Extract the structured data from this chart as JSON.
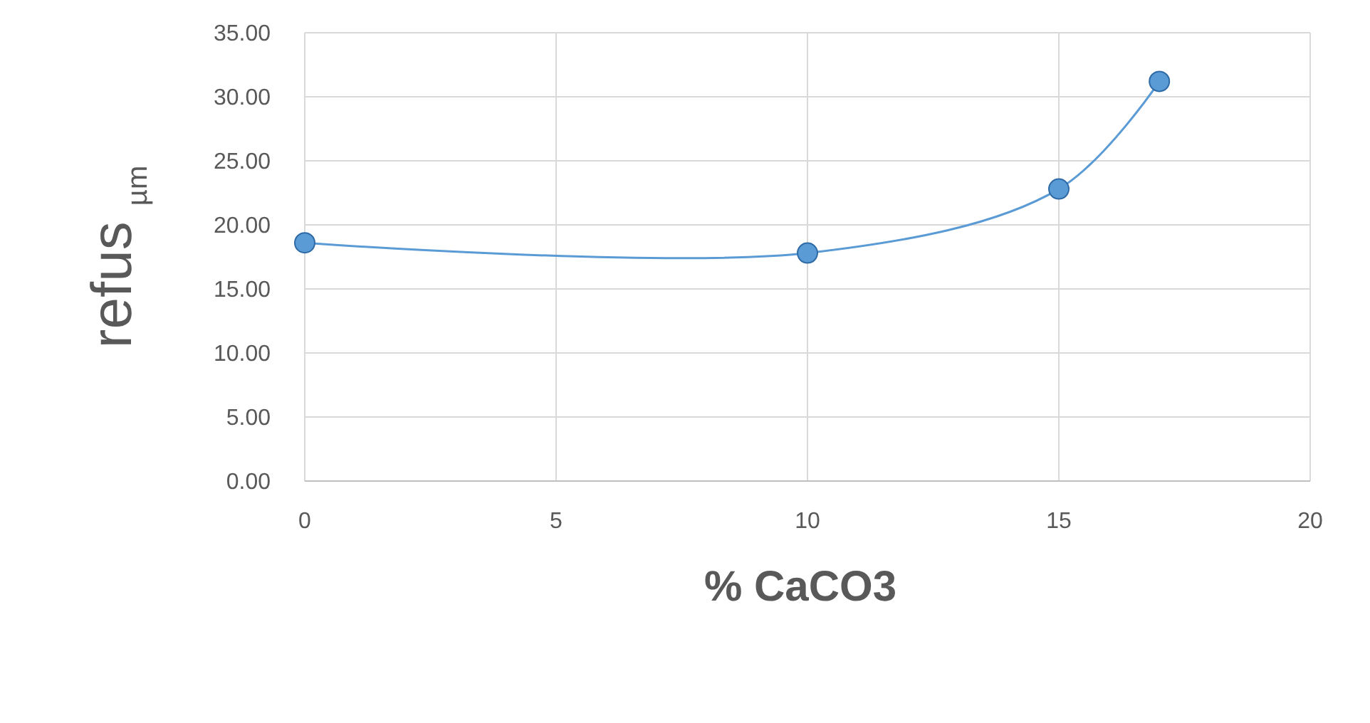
{
  "chart_data": {
    "type": "line",
    "xlabel": "% CaCO3",
    "ylabel": "refus $_{µm}$",
    "x": [
      0,
      10,
      15,
      17
    ],
    "series": [
      {
        "color": "#5b9bd5",
        "values": [
          18.6,
          17.8,
          22.8,
          31.2
        ]
      }
    ],
    "xlim": [
      0,
      20
    ],
    "xticks": [
      0,
      5,
      10,
      15,
      20
    ],
    "ylim": [
      0,
      35
    ],
    "yticks": [
      {
        "value": 0,
        "label": "0.00"
      },
      {
        "value": 5,
        "label": "5.00"
      },
      {
        "value": 10,
        "label": "10.00"
      },
      {
        "value": 15,
        "label": "15.00"
      },
      {
        "value": 20,
        "label": "20.00"
      },
      {
        "value": 25,
        "label": "25.00"
      },
      {
        "value": 30,
        "label": "30.00"
      },
      {
        "value": 35,
        "label": "35.00"
      }
    ],
    "grid": true,
    "marker": "circle",
    "line_style": "solid"
  }
}
